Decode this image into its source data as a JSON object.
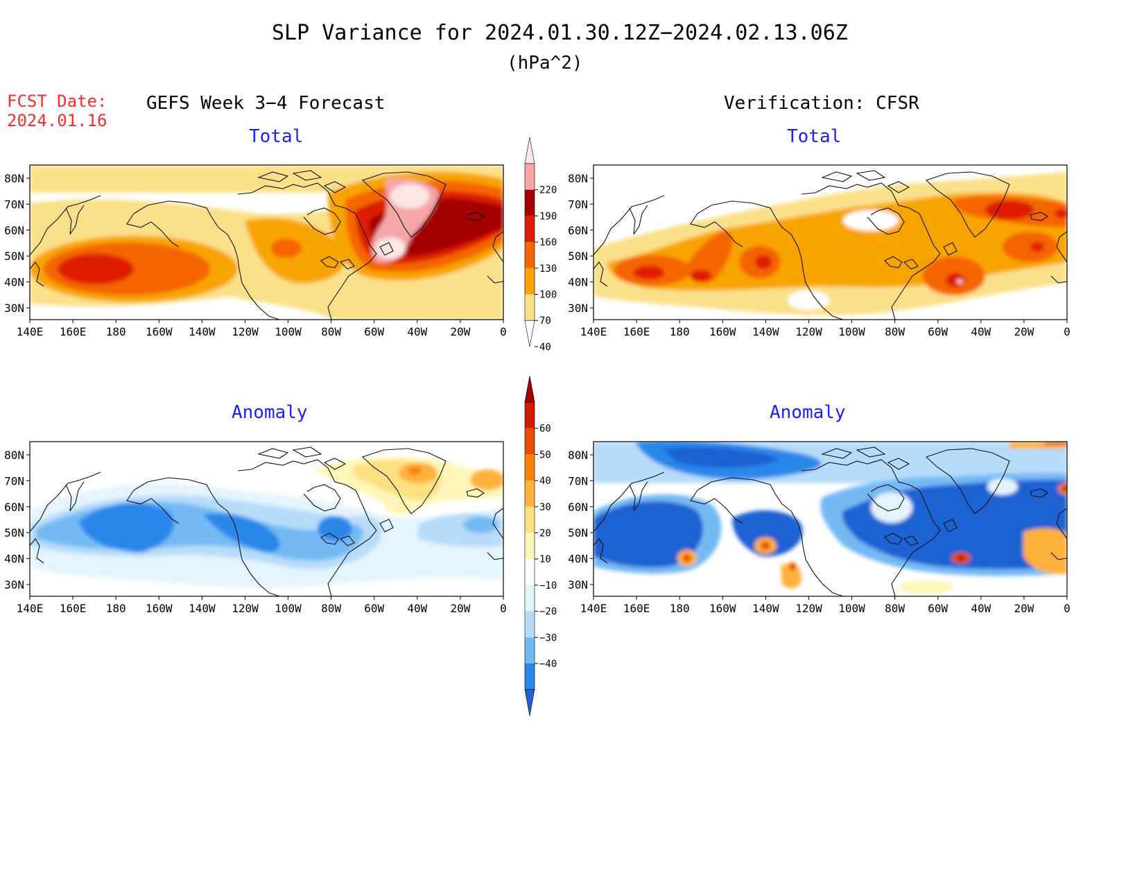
{
  "header": {
    "title": "SLP Variance for 2024.01.30.12Z−2024.02.13.06Z",
    "units": "(hPa^2)",
    "fcst_label": "FCST Date:",
    "fcst_date": "2024.01.16",
    "left_heading": "GEFS Week 3−4 Forecast",
    "right_heading": "Verification: CFSR"
  },
  "panels": {
    "top_left_title": "Total",
    "top_right_title": "Total",
    "bottom_left_title": "Anomaly",
    "bottom_right_title": "Anomaly"
  },
  "axes": {
    "lon_labels": [
      "140E",
      "160E",
      "180",
      "160W",
      "140W",
      "120W",
      "100W",
      "80W",
      "60W",
      "40W",
      "20W",
      "0"
    ],
    "lat_labels": [
      "80N",
      "70N",
      "60N",
      "50N",
      "40N",
      "30N"
    ]
  },
  "colorbars": {
    "total": {
      "levels": [
        "40",
        "70",
        "100",
        "130",
        "160",
        "190",
        "220"
      ],
      "colors": [
        "#ffffff",
        "#fbe08a",
        "#f8a400",
        "#f46500",
        "#dd1c06",
        "#a40000",
        "#f4a6a8",
        "#fde6e6"
      ]
    },
    "anomaly": {
      "levels": [
        "−40",
        "−30",
        "−20",
        "−10",
        "10",
        "20",
        "30",
        "40",
        "50",
        "60"
      ],
      "colors": [
        "#1e62d2",
        "#2a87ea",
        "#74b9f4",
        "#b6dcfa",
        "#e4f4fd",
        "#ffffff",
        "#fdf6b8",
        "#fde082",
        "#fdb13c",
        "#f98109",
        "#e74d05",
        "#d01b03",
        "#a50000"
      ]
    }
  }
}
